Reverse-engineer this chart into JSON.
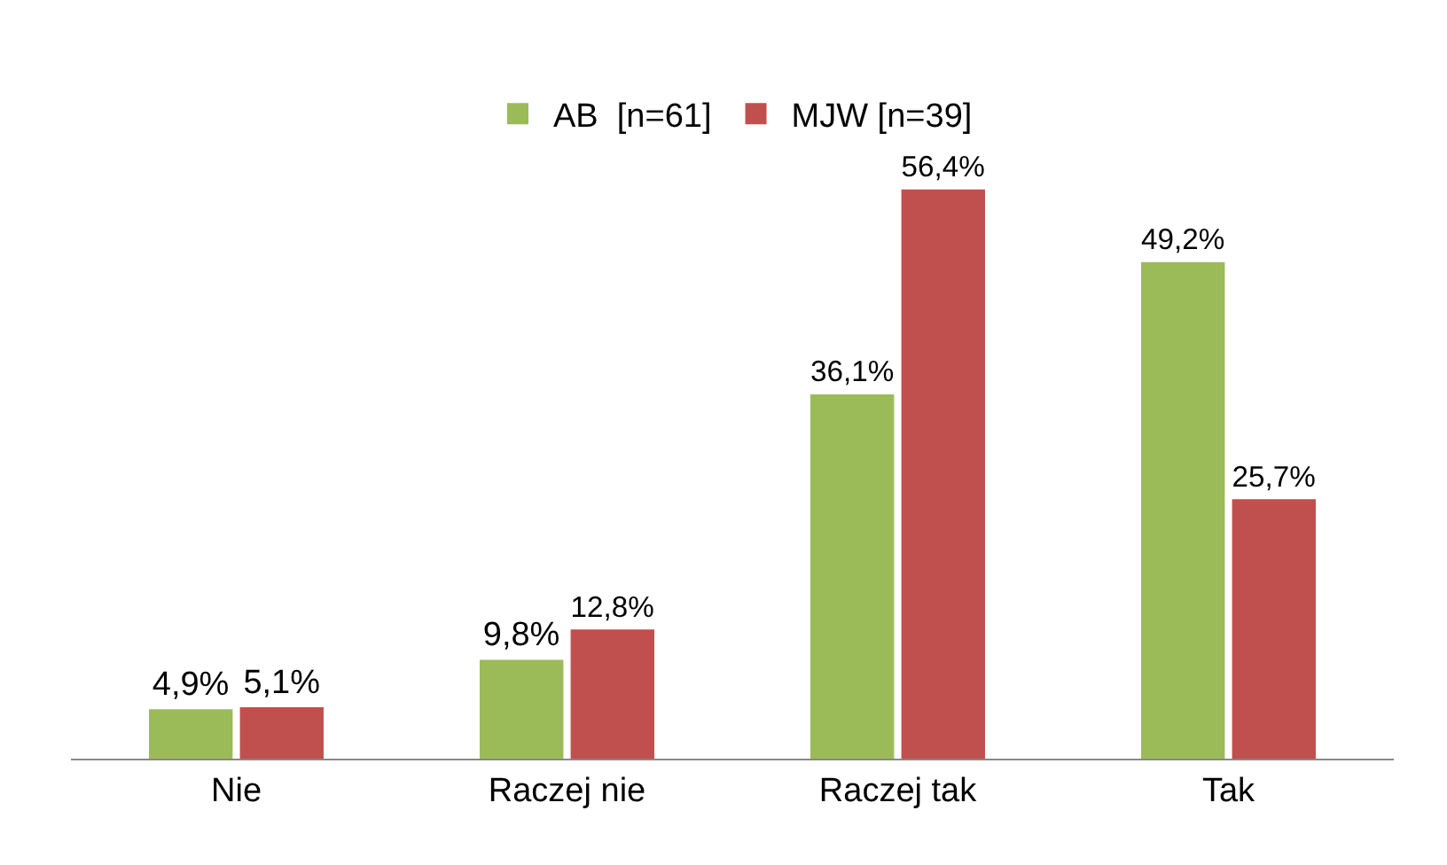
{
  "chart_data": {
    "type": "bar",
    "categories": [
      "Nie",
      "Raczej nie",
      "Raczej tak",
      "Tak"
    ],
    "series": [
      {
        "name": "AB  [n=61]",
        "color": "#9bbb59",
        "values": [
          4.9,
          9.8,
          36.1,
          49.2
        ],
        "value_labels": [
          "4,9%",
          "9,8%",
          "36,1%",
          "49,2%"
        ]
      },
      {
        "name": "MJW [n=39]",
        "color": "#c0504d",
        "values": [
          5.1,
          12.8,
          56.4,
          25.7
        ],
        "value_labels": [
          "5,1%",
          "12,8%",
          "56,4%",
          "25,7%"
        ]
      }
    ],
    "legend": "top",
    "grid": false
  }
}
